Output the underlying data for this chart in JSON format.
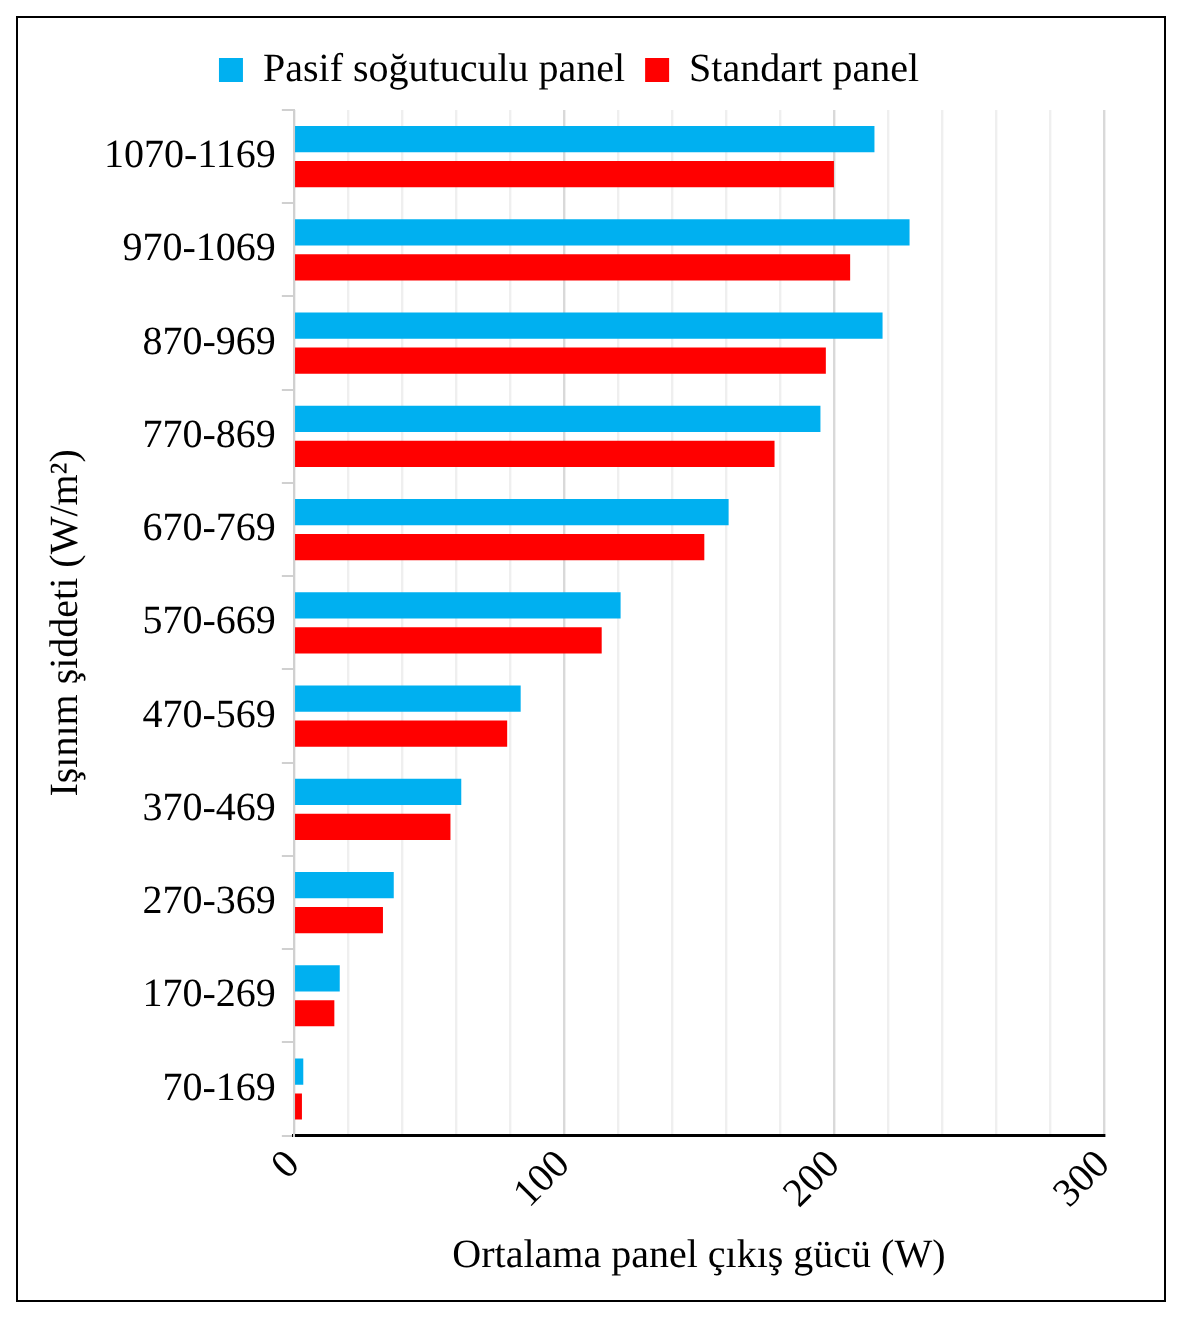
{
  "chart_data": {
    "type": "bar",
    "orientation": "horizontal",
    "xlabel": "Ortalama panel çıkış gücü (W)",
    "ylabel": "Işınım şiddeti (W/m²)",
    "categories": [
      "1070-1169",
      "970-1069",
      "870-969",
      "770-869",
      "670-769",
      "570-669",
      "470-569",
      "370-469",
      "270-369",
      "170-269",
      "70-169"
    ],
    "series": [
      {
        "name": "Pasif soğutuculu panel",
        "color": "#00b0f0",
        "values": [
          215,
          228,
          218,
          195,
          161,
          121,
          84,
          62,
          37,
          17,
          3.5
        ]
      },
      {
        "name": "Standart panel",
        "color": "#ff0000",
        "values": [
          200,
          206,
          197,
          178,
          152,
          114,
          79,
          58,
          33,
          15,
          3
        ]
      }
    ],
    "xlim": [
      0,
      300
    ],
    "xticks": [
      0,
      {
        "value": 20,
        "label": null
      },
      {
        "value": 40,
        "label": null
      },
      {
        "value": 60,
        "label": null
      },
      {
        "value": 80,
        "label": null
      },
      100,
      {
        "value": 120,
        "label": null
      },
      {
        "value": 140,
        "label": null
      },
      {
        "value": 160,
        "label": null
      },
      {
        "value": 180,
        "label": null
      },
      200,
      {
        "value": 220,
        "label": null
      },
      {
        "value": 240,
        "label": null
      },
      {
        "value": 260,
        "label": null
      },
      {
        "value": 280,
        "label": null
      },
      300
    ],
    "grid": "x",
    "legend": "top"
  }
}
